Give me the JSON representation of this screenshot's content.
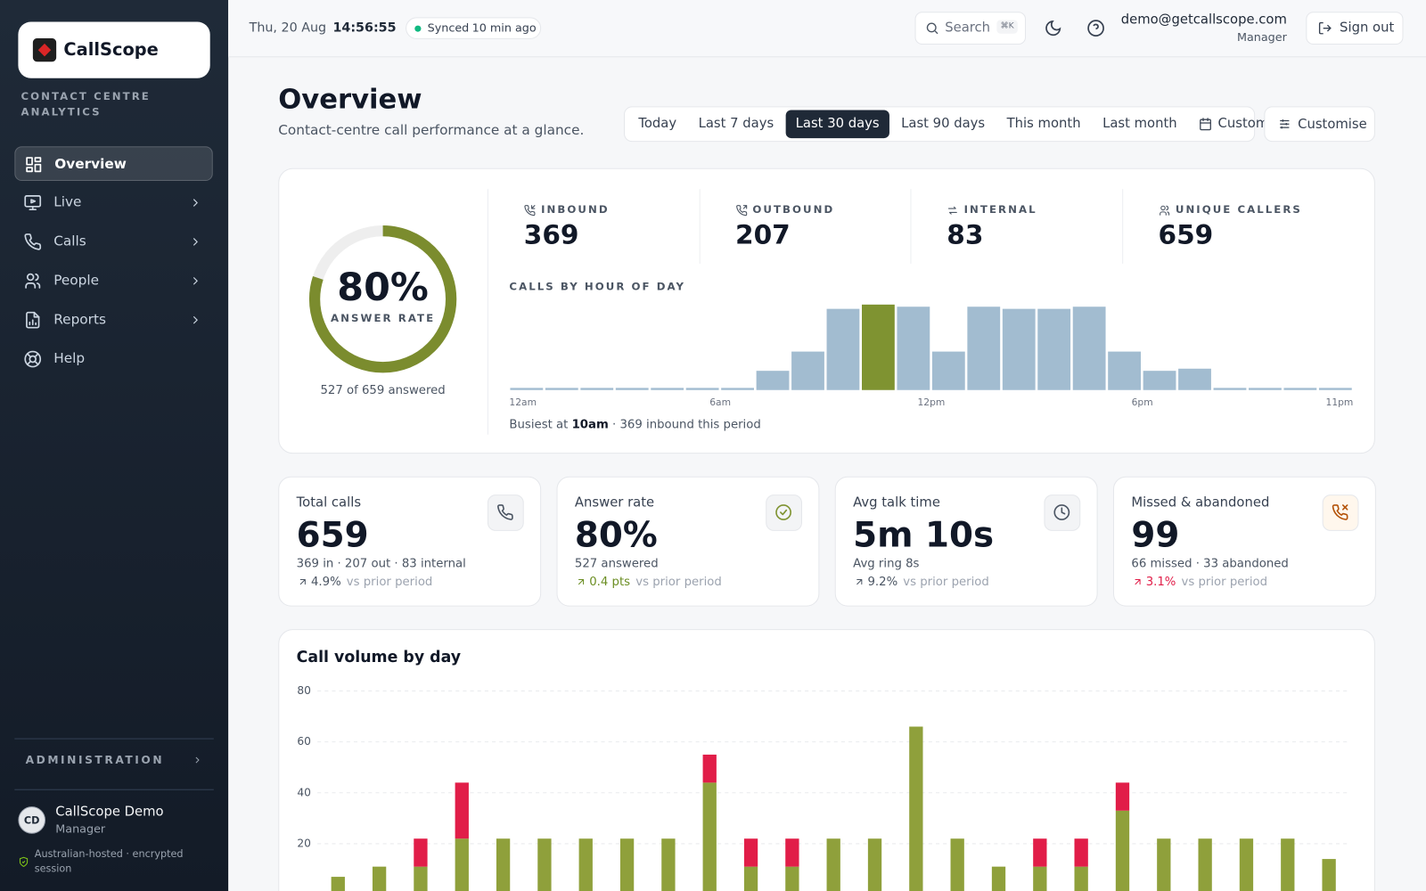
{
  "sidebar": {
    "brand": "CallScope",
    "tagline": "CONTACT CENTRE ANALYTICS",
    "nav": [
      {
        "label": "Overview",
        "active": true
      },
      {
        "label": "Live",
        "chevron": true
      },
      {
        "label": "Calls",
        "chevron": true
      },
      {
        "label": "People",
        "chevron": true
      },
      {
        "label": "Reports",
        "chevron": true
      },
      {
        "label": "Help"
      }
    ],
    "admin": "ADMINISTRATION",
    "user": {
      "initials": "CD",
      "name": "CallScope Demo",
      "role": "Manager"
    },
    "security": "Australian-hosted · encrypted session"
  },
  "topbar": {
    "date": "Thu, 20 Aug",
    "time": "14:56:55",
    "sync_status": "Synced",
    "sync_age": "10 min ago",
    "search": "Search",
    "search_shortcut": "⌘K",
    "email": "demo@getcallscope.com",
    "role": "Manager",
    "sign_out": "Sign out"
  },
  "header": {
    "title": "Overview",
    "subtitle": "Contact-centre call performance at a glance.",
    "ranges": [
      "Today",
      "Last 7 days",
      "Last 30 days",
      "Last 90 days",
      "This month",
      "Last month"
    ],
    "selected_range": 2,
    "custom": "Custom",
    "customise": "Customise"
  },
  "summary": {
    "gauge": {
      "value": 80,
      "label": "80%"
    },
    "gauge_label": "ANSWER RATE",
    "gauge_caption": "527 of 659 answered",
    "stats": [
      {
        "label": "INBOUND",
        "value": 369
      },
      {
        "label": "OUTBOUND",
        "value": 207
      },
      {
        "label": "INTERNAL",
        "value": 83
      },
      {
        "label": "UNIQUE CALLERS",
        "value": 659
      }
    ],
    "busiest_prefix": "Busiest at",
    "busiest_hour": "10am",
    "busiest_suffix": "· 369 inbound this period"
  },
  "kpis": [
    {
      "label": "Total calls",
      "value": "659",
      "detail": "369 in · 207 out · 83 internal",
      "change": "4.9%",
      "comparison": "vs prior period",
      "trend": "neutral"
    },
    {
      "label": "Answer rate",
      "value": "80%",
      "detail": "527 answered",
      "change": "0.4 pts",
      "comparison": "vs prior period",
      "trend": "good"
    },
    {
      "label": "Avg talk time",
      "value": "5m 10s",
      "detail": "Avg ring 8s",
      "change": "9.2%",
      "comparison": "vs prior period",
      "trend": "neutral"
    },
    {
      "label": "Missed & abandoned",
      "value": "99",
      "detail": "66 missed · 33 abandoned",
      "change": "3.1%",
      "comparison": "vs prior period",
      "trend": "bad"
    }
  ],
  "chart_data": [
    {
      "type": "bar",
      "title": "CALLS BY HOUR OF DAY",
      "categories": [
        "12am",
        null,
        null,
        null,
        null,
        null,
        "6am",
        null,
        null,
        null,
        null,
        null,
        "12pm",
        null,
        null,
        null,
        null,
        null,
        "6pm",
        null,
        null,
        null,
        null,
        "11pm"
      ],
      "values": [
        1,
        1,
        1,
        1,
        1,
        1,
        1,
        9,
        18,
        38,
        40,
        39,
        18,
        39,
        38,
        38,
        39,
        18,
        9,
        10,
        1,
        1,
        1,
        1
      ],
      "color": "#a2bcd0",
      "highlight_color": "#7f9331"
    },
    {
      "type": "stacked-bar",
      "title": "Call volume by day",
      "series": [
        {
          "color": "#8fa03b",
          "values": [
            7,
            11,
            11,
            22,
            22,
            22,
            22,
            22,
            22,
            44,
            11,
            11,
            22,
            22,
            66,
            22,
            11,
            11,
            11,
            33,
            22,
            22,
            22,
            22,
            14
          ]
        },
        {
          "color": "#e11d48",
          "values": [
            0,
            0,
            11,
            22,
            0,
            0,
            0,
            0,
            0,
            11,
            11,
            11,
            0,
            0,
            0,
            0,
            0,
            11,
            11,
            11,
            0,
            0,
            0,
            0,
            0
          ]
        }
      ],
      "ylim": [
        0,
        80
      ],
      "yticks": [
        20,
        40,
        60,
        80
      ],
      "grid": true
    }
  ]
}
